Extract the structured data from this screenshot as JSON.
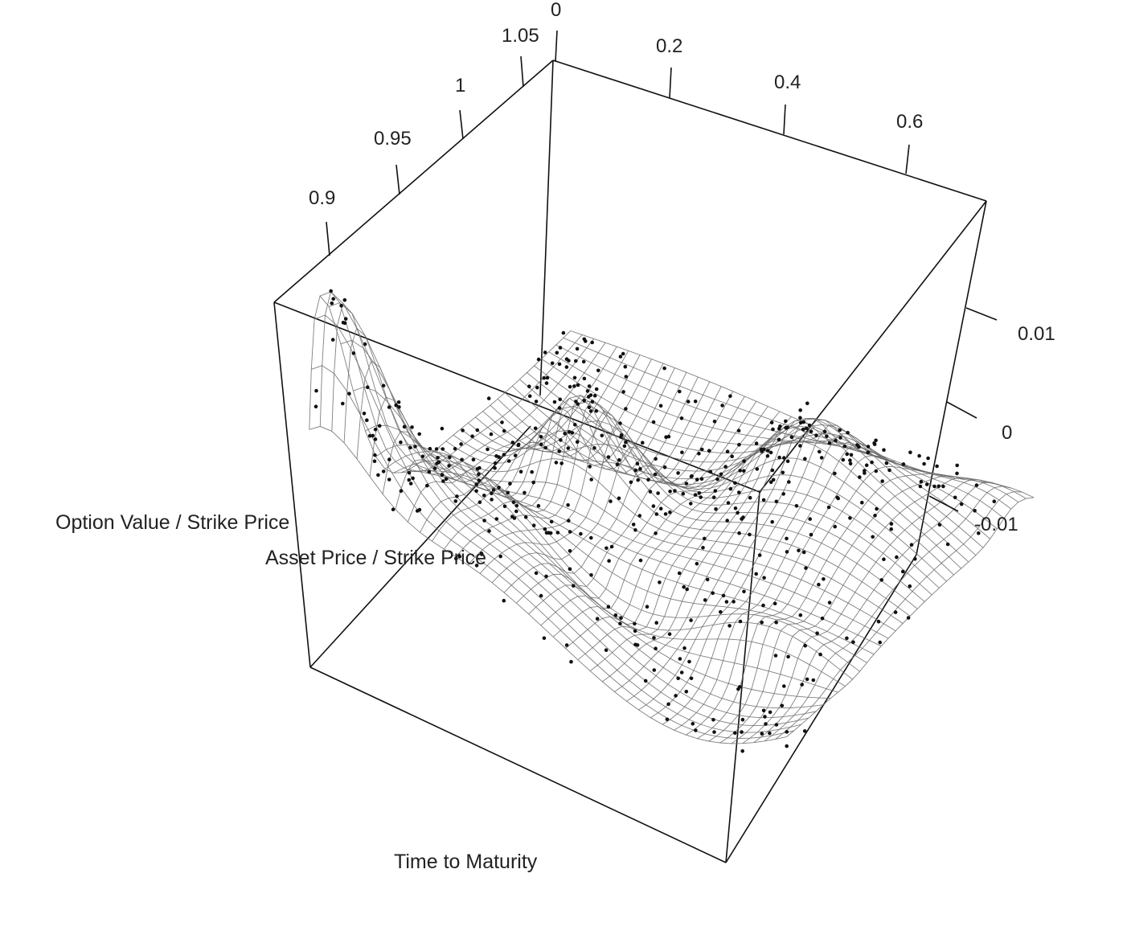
{
  "chart_data": {
    "type": "surface3d",
    "title": "",
    "axes": {
      "x": {
        "label": "Asset Price / Strike Price",
        "ticks": [
          "0.9",
          "0.95",
          "1",
          "1.05"
        ],
        "range": [
          0.88,
          1.07
        ]
      },
      "y": {
        "label": "Time to Maturity",
        "ticks": [
          "0",
          "0.2",
          "0.4",
          "0.6"
        ],
        "range": [
          0,
          0.7
        ]
      },
      "z": {
        "label": "Option Value / Strike Price",
        "ticks": [
          "-0.01",
          "0",
          "0.01"
        ],
        "range": [
          -0.015,
          0.015
        ]
      }
    },
    "surface": {
      "description_levels": "smoothed residual surface with scattered observation points",
      "ridges": [
        {
          "x": 0.905,
          "y": 0.02,
          "z": 0.013
        },
        {
          "x": 0.985,
          "y": 0.2,
          "z": 0.004
        },
        {
          "x": 1.02,
          "y": 0.45,
          "z": -0.002
        },
        {
          "x": 1.05,
          "y": 0.65,
          "z": -0.004
        }
      ]
    },
    "grid": false,
    "legend": "none"
  }
}
